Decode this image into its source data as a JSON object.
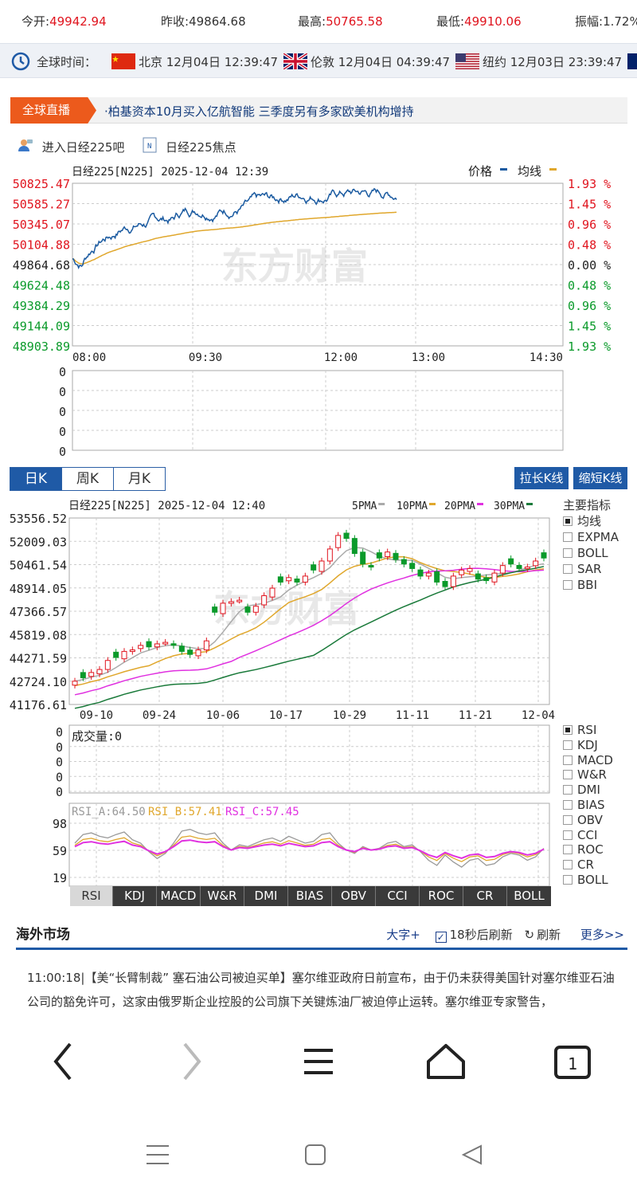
{
  "quote": {
    "open_label": "今开:",
    "open": "49942.94",
    "prev_label": "昨收:",
    "prev": "49864.68",
    "high_label": "最高:",
    "high": "50765.58",
    "low_label": "最低:",
    "low": "49910.06",
    "amp_label": "振幅:",
    "amp": "1.72%"
  },
  "clock": {
    "label": "全球时间：",
    "beijing": "北京 12月04日 12:39:47",
    "london": "伦敦 12月04日 04:39:47",
    "newyork": "纽约 12月03日 23:39:47"
  },
  "live": {
    "tag": "全球直播",
    "text": "·柏基资本10月买入亿航智能 三季度另有多家欧美机构增持"
  },
  "links": {
    "bar": "进入日经225吧",
    "focus": "日经225焦点"
  },
  "intraday": {
    "title": "日经225[N225] 2025-12-04 12:39",
    "legend_price": "价格",
    "legend_avg": "均线",
    "left_ticks": [
      "50825.47",
      "50585.27",
      "50345.07",
      "50104.88",
      "49864.68",
      "49624.48",
      "49384.29",
      "49144.09",
      "48903.89"
    ],
    "right_ticks": [
      "1.93 %",
      "1.45 %",
      "0.96 %",
      "0.48 %",
      "0.00 %",
      "0.48 %",
      "0.96 %",
      "1.45 %",
      "1.93 %"
    ],
    "time_ticks": [
      "08:00",
      "09:30",
      "12:00",
      "13:00",
      "14:30"
    ],
    "vol_ticks": [
      "0",
      "0",
      "0",
      "0",
      "0"
    ],
    "watermark": "东方财富",
    "colors": {
      "price": "#1a5aa0",
      "avg": "#e0a72c",
      "up": "#e0141e",
      "down": "#0a9a2a"
    }
  },
  "ktabs": [
    "日K",
    "周K",
    "月K"
  ],
  "kbuttons": {
    "longer": "拉长K线",
    "shorter": "缩短K线"
  },
  "kchart": {
    "title": "日经225[N225] 2025-12-04 12:40",
    "ma_legend": [
      "5PMA",
      "10PMA",
      "20PMA",
      "30PMA"
    ],
    "ma_colors": [
      "#aaaaaa",
      "#e0a72c",
      "#e030e0",
      "#1a7a3a"
    ],
    "y_ticks": [
      "53556.52",
      "52009.03",
      "50461.54",
      "48914.05",
      "47366.57",
      "45819.08",
      "44271.59",
      "42724.10",
      "41176.61"
    ],
    "x_ticks": [
      "09-10",
      "09-24",
      "10-06",
      "10-17",
      "10-29",
      "11-11",
      "11-21",
      "12-04"
    ],
    "vol_label": "成交量:0",
    "vol_ticks": [
      "0",
      "0",
      "0",
      "0",
      "0"
    ],
    "rsi_labels": [
      "RSI_A:64.50",
      "RSI_B:57.41",
      "RSI_C:57.45"
    ],
    "rsi_colors": [
      "#999999",
      "#e0a72c",
      "#e030e0"
    ],
    "rsi_ticks": [
      "98",
      "59",
      "19"
    ]
  },
  "indicators": {
    "title": "主要指标",
    "main": [
      "均线",
      "EXPMA",
      "BOLL",
      "SAR",
      "BBI"
    ],
    "sub": [
      "RSI",
      "KDJ",
      "MACD",
      "W&R",
      "DMI",
      "BIAS",
      "OBV",
      "CCI",
      "ROC",
      "CR",
      "BOLL"
    ]
  },
  "indtabs": [
    "RSI",
    "KDJ",
    "MACD",
    "W&R",
    "DMI",
    "BIAS",
    "OBV",
    "CCI",
    "ROC",
    "CR",
    "BOLL"
  ],
  "overseas": {
    "title": "海外市场",
    "bigfont": "大字+",
    "refresh_after": "18秒后刷新",
    "refresh": "刷新",
    "more": "更多>>"
  },
  "news": {
    "time": "11:00:18",
    "text": "【美“长臂制裁” 塞石油公司被迫买单】塞尔维亚政府日前宣布，由于仍未获得美国针对塞尔维亚石油公司的豁免许可，这家由俄罗斯企业控股的公司旗下关键炼油厂被迫停止运转。塞尔维亚专家警告，"
  },
  "nav": {
    "tab_count": "1"
  }
}
